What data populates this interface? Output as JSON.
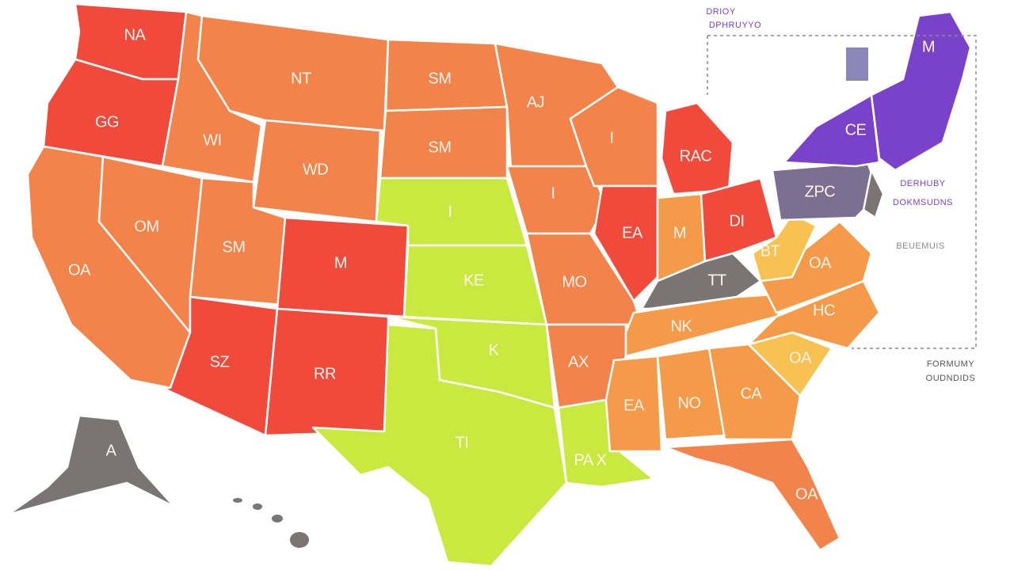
{
  "map": {
    "states": [
      {
        "label": "NA"
      },
      {
        "label": "GG"
      },
      {
        "label": "WI"
      },
      {
        "label": "NT"
      },
      {
        "label": "SM"
      },
      {
        "label": "AJ"
      },
      {
        "label": "SM"
      },
      {
        "label": "WD"
      },
      {
        "label": "I"
      },
      {
        "label": "I"
      },
      {
        "label": "I"
      },
      {
        "label": "RAC"
      },
      {
        "label": "OM"
      },
      {
        "label": "SM"
      },
      {
        "label": "M"
      },
      {
        "label": "KE"
      },
      {
        "label": "MO"
      },
      {
        "label": "EA"
      },
      {
        "label": "M"
      },
      {
        "label": "DI"
      },
      {
        "label": "OA"
      },
      {
        "label": "SZ"
      },
      {
        "label": "RR"
      },
      {
        "label": "K"
      },
      {
        "label": "AX"
      },
      {
        "label": "TT"
      },
      {
        "label": "BT"
      },
      {
        "label": "OA"
      },
      {
        "label": "HC"
      },
      {
        "label": "NK"
      },
      {
        "label": "OA"
      },
      {
        "label": "EA"
      },
      {
        "label": "NO"
      },
      {
        "label": "CA"
      },
      {
        "label": "TI"
      },
      {
        "label": "PA X"
      },
      {
        "label": "OA"
      },
      {
        "label": "A"
      },
      {
        "label": "ZPC"
      },
      {
        "label": "CE"
      },
      {
        "label": "M"
      }
    ],
    "notes": [
      "DRIOY",
      "DPHRUYYO",
      "DERHUBY",
      "DOKMSUDNS",
      "BEUEMUIS",
      "FORMUMY",
      "OUDNDIDS"
    ]
  }
}
